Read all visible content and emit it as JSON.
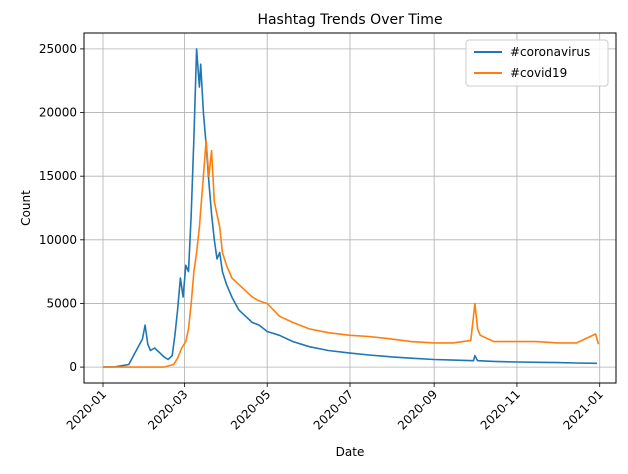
{
  "chart_data": {
    "type": "line",
    "title": "Hashtag Trends Over Time",
    "xlabel": "Date",
    "ylabel": "Count",
    "xlim": [
      "2019-12-18",
      "2021-01-13"
    ],
    "ylim": [
      -1250,
      26250
    ],
    "x_ticks": [
      "2020-01",
      "2020-03",
      "2020-05",
      "2020-07",
      "2020-09",
      "2020-11",
      "2021-01"
    ],
    "y_ticks": [
      0,
      5000,
      10000,
      15000,
      20000,
      25000
    ],
    "grid": true,
    "legend_position": "top-right",
    "series": [
      {
        "name": "#coronavirus",
        "color": "#1f77b4",
        "points": [
          [
            "2020-01-01",
            0
          ],
          [
            "2020-01-10",
            20
          ],
          [
            "2020-01-20",
            200
          ],
          [
            "2020-01-24",
            1000
          ],
          [
            "2020-01-28",
            1800
          ],
          [
            "2020-01-30",
            2200
          ],
          [
            "2020-02-01",
            3300
          ],
          [
            "2020-02-03",
            1800
          ],
          [
            "2020-02-05",
            1300
          ],
          [
            "2020-02-08",
            1500
          ],
          [
            "2020-02-12",
            1100
          ],
          [
            "2020-02-15",
            800
          ],
          [
            "2020-02-18",
            600
          ],
          [
            "2020-02-21",
            900
          ],
          [
            "2020-02-23",
            2500
          ],
          [
            "2020-02-25",
            4500
          ],
          [
            "2020-02-27",
            7000
          ],
          [
            "2020-02-29",
            5500
          ],
          [
            "2020-03-02",
            8000
          ],
          [
            "2020-03-04",
            7500
          ],
          [
            "2020-03-06",
            12000
          ],
          [
            "2020-03-08",
            18000
          ],
          [
            "2020-03-10",
            25000
          ],
          [
            "2020-03-12",
            22000
          ],
          [
            "2020-03-13",
            23800
          ],
          [
            "2020-03-15",
            20000
          ],
          [
            "2020-03-17",
            17500
          ],
          [
            "2020-03-19",
            14500
          ],
          [
            "2020-03-21",
            12000
          ],
          [
            "2020-03-23",
            10000
          ],
          [
            "2020-03-25",
            8500
          ],
          [
            "2020-03-27",
            9000
          ],
          [
            "2020-03-29",
            7500
          ],
          [
            "2020-04-01",
            6500
          ],
          [
            "2020-04-05",
            5500
          ],
          [
            "2020-04-10",
            4500
          ],
          [
            "2020-04-15",
            4000
          ],
          [
            "2020-04-20",
            3500
          ],
          [
            "2020-04-25",
            3300
          ],
          [
            "2020-05-01",
            2800
          ],
          [
            "2020-05-10",
            2500
          ],
          [
            "2020-05-20",
            2000
          ],
          [
            "2020-06-01",
            1600
          ],
          [
            "2020-06-15",
            1300
          ],
          [
            "2020-07-01",
            1100
          ],
          [
            "2020-07-15",
            950
          ],
          [
            "2020-08-01",
            800
          ],
          [
            "2020-08-15",
            700
          ],
          [
            "2020-09-01",
            600
          ],
          [
            "2020-09-15",
            550
          ],
          [
            "2020-09-30",
            500
          ],
          [
            "2020-10-01",
            900
          ],
          [
            "2020-10-03",
            500
          ],
          [
            "2020-10-15",
            450
          ],
          [
            "2020-11-01",
            400
          ],
          [
            "2020-11-15",
            380
          ],
          [
            "2020-12-01",
            350
          ],
          [
            "2020-12-15",
            320
          ],
          [
            "2020-12-30",
            300
          ]
        ]
      },
      {
        "name": "#covid19",
        "color": "#ff7f0e",
        "points": [
          [
            "2020-01-01",
            0
          ],
          [
            "2020-02-15",
            0
          ],
          [
            "2020-02-22",
            200
          ],
          [
            "2020-02-25",
            700
          ],
          [
            "2020-02-28",
            1500
          ],
          [
            "2020-03-02",
            2000
          ],
          [
            "2020-03-04",
            3000
          ],
          [
            "2020-03-06",
            5000
          ],
          [
            "2020-03-08",
            7500
          ],
          [
            "2020-03-10",
            9000
          ],
          [
            "2020-03-12",
            11000
          ],
          [
            "2020-03-15",
            15000
          ],
          [
            "2020-03-17",
            17800
          ],
          [
            "2020-03-19",
            15000
          ],
          [
            "2020-03-21",
            17000
          ],
          [
            "2020-03-23",
            13000
          ],
          [
            "2020-03-25",
            12000
          ],
          [
            "2020-03-27",
            11000
          ],
          [
            "2020-03-29",
            9000
          ],
          [
            "2020-04-01",
            8000
          ],
          [
            "2020-04-05",
            7000
          ],
          [
            "2020-04-10",
            6500
          ],
          [
            "2020-04-15",
            6000
          ],
          [
            "2020-04-20",
            5500
          ],
          [
            "2020-04-25",
            5200
          ],
          [
            "2020-05-01",
            5000
          ],
          [
            "2020-05-10",
            4000
          ],
          [
            "2020-05-20",
            3500
          ],
          [
            "2020-06-01",
            3000
          ],
          [
            "2020-06-15",
            2700
          ],
          [
            "2020-07-01",
            2500
          ],
          [
            "2020-07-15",
            2400
          ],
          [
            "2020-08-01",
            2200
          ],
          [
            "2020-08-15",
            2000
          ],
          [
            "2020-09-01",
            1900
          ],
          [
            "2020-09-15",
            1900
          ],
          [
            "2020-09-28",
            2100
          ],
          [
            "2020-09-30",
            4000
          ],
          [
            "2020-10-01",
            5000
          ],
          [
            "2020-10-03",
            3000
          ],
          [
            "2020-10-05",
            2500
          ],
          [
            "2020-10-15",
            2000
          ],
          [
            "2020-11-01",
            2000
          ],
          [
            "2020-11-15",
            2000
          ],
          [
            "2020-12-01",
            1900
          ],
          [
            "2020-12-15",
            1900
          ],
          [
            "2020-12-29",
            2600
          ],
          [
            "2020-12-31",
            1800
          ]
        ]
      }
    ]
  }
}
